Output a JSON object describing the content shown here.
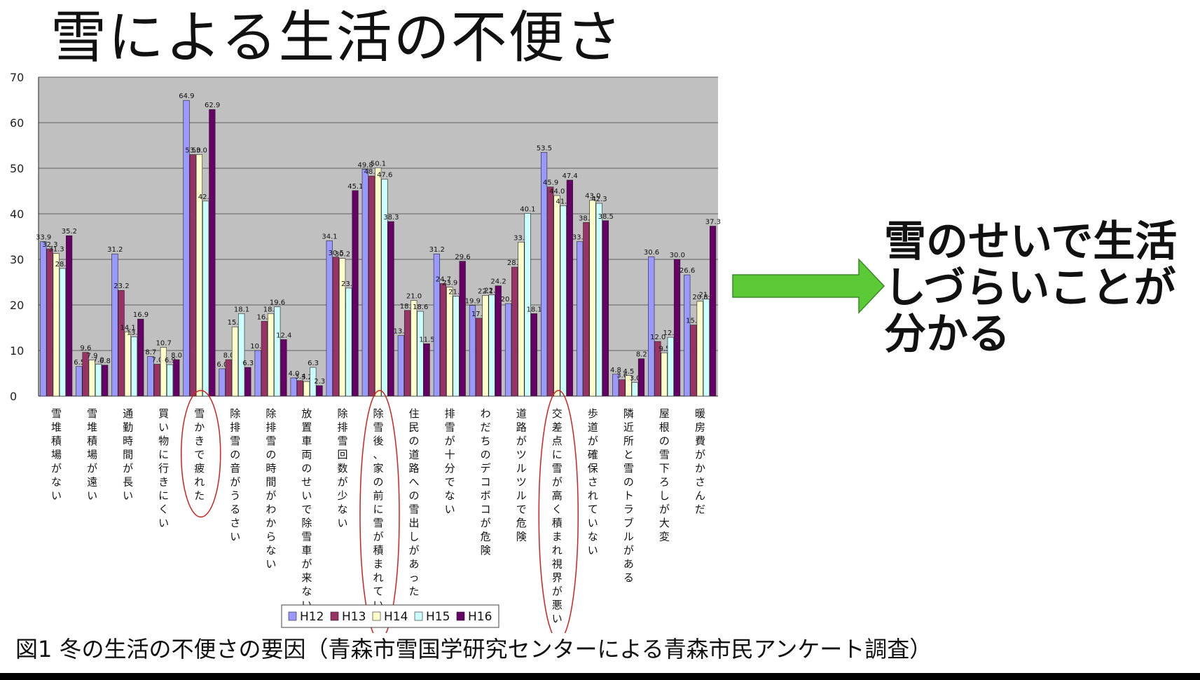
{
  "slide": {
    "title": "雪による生活の不便さ",
    "callout_lines": [
      "雪のせいで生活",
      "しづらいことが",
      "分かる"
    ],
    "caption": "図1  冬の生活の不便さの要因（青森市雪国学研究センターによる青森市民アンケート調査）"
  },
  "colors": {
    "plot_bg": "#c0c0c0",
    "arrow": "#5cc936",
    "highlight_ellipse": "#d42020"
  },
  "chart_data": {
    "type": "bar",
    "title": "",
    "xlabel": "",
    "ylabel": "",
    "ylim": [
      0,
      70
    ],
    "yticks": [
      0,
      10,
      20,
      30,
      40,
      50,
      60,
      70
    ],
    "grid": true,
    "legend_position": "bottom",
    "categories": [
      "雪堆積場がない",
      "雪堆積場が遠い",
      "通勤時間が長い",
      "買い物に行きにくい",
      "雪かきで疲れた",
      "除排雪の音がうるさい",
      "除排雪の時間がわからない",
      "放置車両のせいで除雪車が来ない",
      "除排雪回数が少ない",
      "除雪後、家の前に雪が積まれていた",
      "住民の道路への雪出しがあった",
      "排雪が十分でない",
      "わだちのデコボコが危険",
      "道路がツルツルで危険",
      "交差点に雪が高く積まれ視界が悪い",
      "歩道が確保されていない",
      "隣近所と雪のトラブルがある",
      "屋根の雪下ろしが大変",
      "暖房費がかさんだ"
    ],
    "highlighted_categories": [
      "雪かきで疲れた",
      "除雪後、家の前に雪が積まれていた",
      "交差点に雪が高く積まれ視界が悪い"
    ],
    "series": [
      {
        "name": "H12",
        "color": "#9999ff",
        "values": [
          33.9,
          6.5,
          31.2,
          8.7,
          64.9,
          6.0,
          10.0,
          4.0,
          34.1,
          49.8,
          13.3,
          31.2,
          19.9,
          20.3,
          53.5,
          33.9,
          4.8,
          30.6,
          26.6
        ]
      },
      {
        "name": "H13",
        "color": "#993366",
        "values": [
          32.3,
          9.6,
          23.2,
          7.0,
          53.0,
          8.0,
          16.4,
          3.4,
          30.5,
          48.3,
          18.8,
          24.7,
          17.1,
          28.3,
          45.9,
          38.1,
          3.6,
          12.0,
          15.6
        ]
      },
      {
        "name": "H14",
        "color": "#ffffcc",
        "values": [
          31.3,
          7.9,
          14.1,
          10.7,
          53.0,
          15.2,
          18.1,
          3.2,
          30.2,
          50.1,
          21.0,
          23.9,
          22.1,
          33.8,
          44.0,
          43.0,
          4.5,
          9.5,
          20.8
        ]
      },
      {
        "name": "H15",
        "color": "#ccffff",
        "values": [
          28.0,
          7.0,
          13.0,
          6.9,
          42.8,
          18.1,
          19.6,
          6.3,
          23.7,
          47.6,
          18.6,
          21.9,
          22.2,
          40.1,
          41.8,
          42.3,
          3.0,
          12.9,
          21.3
        ]
      },
      {
        "name": "H16",
        "color": "#660066",
        "values": [
          35.2,
          6.8,
          16.9,
          8.0,
          62.9,
          6.3,
          12.4,
          2.3,
          45.1,
          38.3,
          11.5,
          29.6,
          24.2,
          18.1,
          47.4,
          38.5,
          8.2,
          30.0,
          37.3
        ]
      }
    ]
  }
}
